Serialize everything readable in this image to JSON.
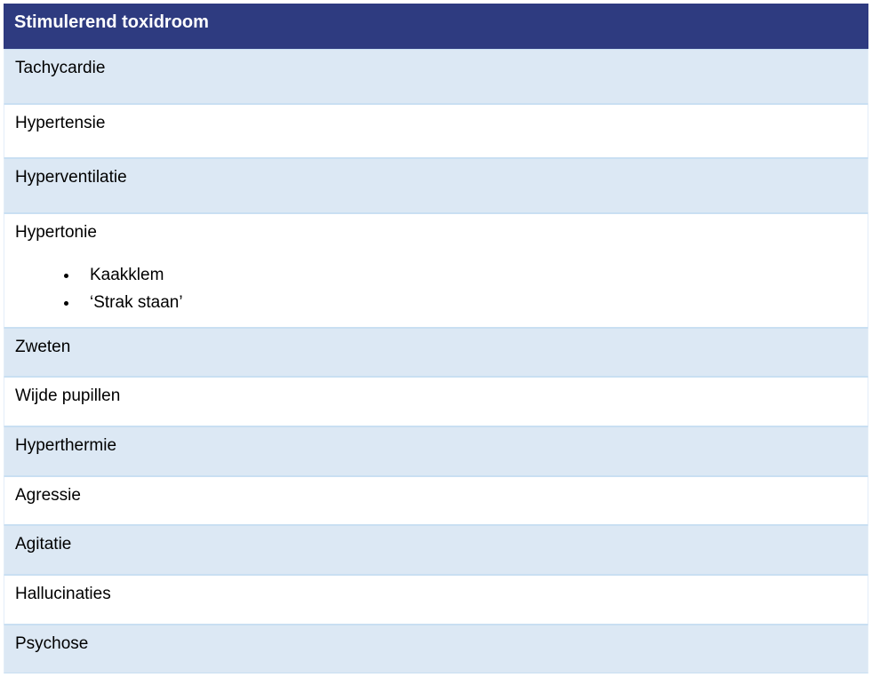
{
  "table": {
    "header": "Stimulerend toxidroom",
    "header_bg": "#2e3b80",
    "header_text_color": "#ffffff",
    "row_odd_bg": "#dce8f4",
    "row_even_bg": "#ffffff",
    "border_color": "#c9dff2",
    "font_family": "Arial",
    "header_fontsize": 20,
    "row_fontsize": 19,
    "rows": [
      {
        "label": "Tachycardie",
        "sub": null
      },
      {
        "label": "Hypertensie",
        "sub": null
      },
      {
        "label": "Hyperventilatie",
        "sub": null
      },
      {
        "label": "Hypertonie",
        "sub": [
          "Kaakklem",
          "‘Strak staan’"
        ]
      },
      {
        "label": "Zweten",
        "sub": null
      },
      {
        "label": "Wijde pupillen",
        "sub": null
      },
      {
        "label": "Hyperthermie",
        "sub": null
      },
      {
        "label": "Agressie",
        "sub": null
      },
      {
        "label": "Agitatie",
        "sub": null
      },
      {
        "label": "Hallucinaties",
        "sub": null
      },
      {
        "label": "Psychose",
        "sub": null
      }
    ]
  }
}
